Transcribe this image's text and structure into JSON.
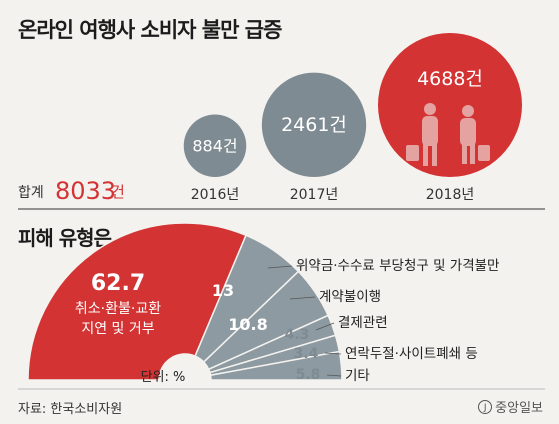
{
  "title": "온라인 여행사 소비자 불만 급증",
  "total": {
    "label": "합계",
    "value": "8033",
    "unit": "건"
  },
  "chart_data": [
    {
      "type": "bubble",
      "categories": [
        "2016년",
        "2017년",
        "2018년"
      ],
      "values": [
        884,
        2461,
        4688
      ],
      "labels": [
        "884건",
        "2461건",
        "4688건"
      ],
      "colors": [
        "#7e8b92",
        "#7e8b92",
        "#d33333"
      ]
    },
    {
      "type": "pie",
      "title": "피해 유형은",
      "unit_note": "단위: %",
      "slices": [
        {
          "name": "취소·환불·교환 지연 및 거부",
          "value": 62.7,
          "color": "#d33333"
        },
        {
          "name": "위약금·수수료 부당청구 및 가격불만",
          "value": 13,
          "color": "#8d9aa1"
        },
        {
          "name": "계약불이행",
          "value": 10.8,
          "color": "#8d9aa1"
        },
        {
          "name": "결제관련",
          "value": 4.3,
          "color": "#8d9aa1"
        },
        {
          "name": "연락두절·사이트폐쇄 등",
          "value": 3.4,
          "color": "#8d9aa1"
        },
        {
          "name": "기타",
          "value": 5.8,
          "color": "#8d9aa1"
        }
      ],
      "big_label_line1": "62.7",
      "big_label_line2": "취소·환불·교환",
      "big_label_line3": "지연 및 거부"
    }
  ],
  "source": "자료: 한국소비자원",
  "publisher": "중앙일보",
  "publisher_mark": "J"
}
